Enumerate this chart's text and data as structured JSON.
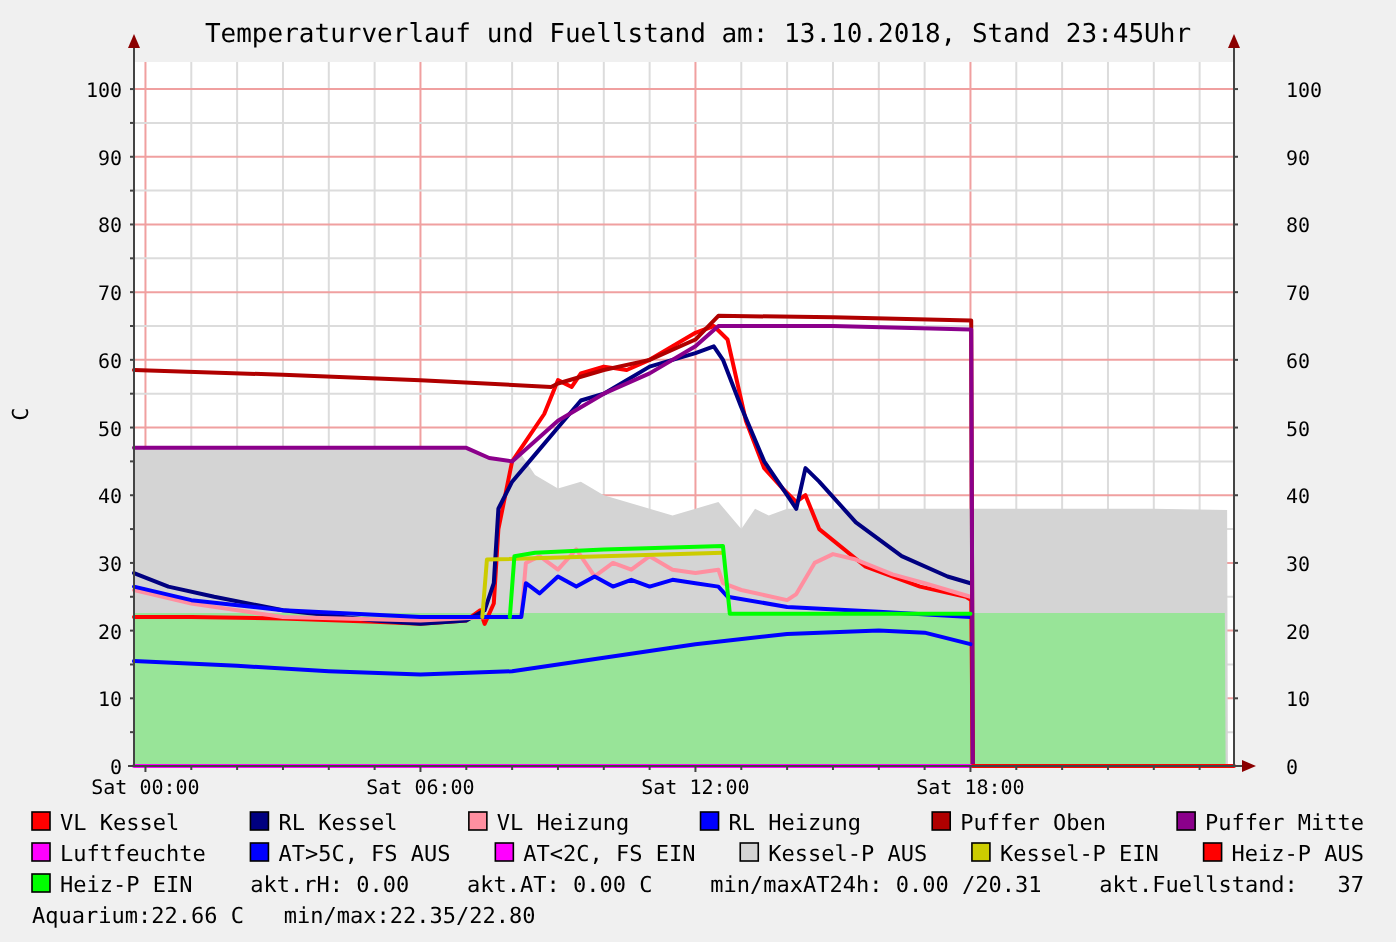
{
  "chart_data": {
    "type": "line",
    "title": "Temperaturverlauf und Fuellstand am: 13.10.2018, Stand 23:45Uhr",
    "ylabel": "C",
    "xlim": [
      "2018-10-12T23:45",
      "2018-10-13T23:45"
    ],
    "xticks": [
      {
        "value": "2018-10-13T00:00",
        "label": "Sat 00:00"
      },
      {
        "value": "2018-10-13T01:00",
        "label": null
      },
      {
        "value": "2018-10-13T02:00",
        "label": null
      },
      {
        "value": "2018-10-13T03:00",
        "label": null
      },
      {
        "value": "2018-10-13T04:00",
        "label": null
      },
      {
        "value": "2018-10-13T05:00",
        "label": null
      },
      {
        "value": "2018-10-13T06:00",
        "label": "Sat 06:00"
      },
      {
        "value": "2018-10-13T07:00",
        "label": null
      },
      {
        "value": "2018-10-13T08:00",
        "label": null
      },
      {
        "value": "2018-10-13T09:00",
        "label": null
      },
      {
        "value": "2018-10-13T10:00",
        "label": null
      },
      {
        "value": "2018-10-13T11:00",
        "label": null
      },
      {
        "value": "2018-10-13T12:00",
        "label": "Sat 12:00"
      },
      {
        "value": "2018-10-13T13:00",
        "label": null
      },
      {
        "value": "2018-10-13T14:00",
        "label": null
      },
      {
        "value": "2018-10-13T15:00",
        "label": null
      },
      {
        "value": "2018-10-13T16:00",
        "label": null
      },
      {
        "value": "2018-10-13T17:00",
        "label": null
      },
      {
        "value": "2018-10-13T18:00",
        "label": "Sat 18:00"
      },
      {
        "value": "2018-10-13T19:00",
        "label": null
      },
      {
        "value": "2018-10-13T20:00",
        "label": null
      },
      {
        "value": "2018-10-13T21:00",
        "label": null
      },
      {
        "value": "2018-10-13T22:00",
        "label": null
      },
      {
        "value": "2018-10-13T23:00",
        "label": null
      }
    ],
    "ylim": [
      0,
      104
    ],
    "yticks": [
      0,
      {
        "value": 5,
        "label": null
      },
      10,
      {
        "value": 15,
        "label": null
      },
      20,
      {
        "value": 25,
        "label": null
      },
      30,
      {
        "value": 35,
        "label": null
      },
      40,
      {
        "value": 45,
        "label": null
      },
      50,
      {
        "value": 55,
        "label": null
      },
      60,
      {
        "value": 65,
        "label": null
      },
      70,
      {
        "value": 75,
        "label": null
      },
      80,
      {
        "value": 85,
        "label": null
      },
      90,
      {
        "value": 95,
        "label": null
      },
      100
    ],
    "y2lim": [
      0,
      104
    ],
    "y2ticks": [
      0,
      10,
      20,
      30,
      40,
      50,
      60,
      70,
      80,
      90,
      100
    ],
    "grid": true,
    "legend": "bottom",
    "series": [
      {
        "name": "VL Kessel",
        "color": "#ff0000",
        "x": [
          "2018-10-12T23:45",
          "2018-10-13T01:00",
          "2018-10-13T03:00",
          "2018-10-13T05:00",
          "2018-10-13T06:00",
          "2018-10-13T07:00",
          "2018-10-13T07:18",
          "2018-10-13T07:24",
          "2018-10-13T07:36",
          "2018-10-13T07:42",
          "2018-10-13T08:00",
          "2018-10-13T08:18",
          "2018-10-13T08:42",
          "2018-10-13T09:00",
          "2018-10-13T09:18",
          "2018-10-13T09:30",
          "2018-10-13T10:00",
          "2018-10-13T10:30",
          "2018-10-13T11:00",
          "2018-10-13T11:30",
          "2018-10-13T12:00",
          "2018-10-13T12:24",
          "2018-10-13T12:42",
          "2018-10-13T13:06",
          "2018-10-13T13:30",
          "2018-10-13T13:54",
          "2018-10-13T14:12",
          "2018-10-13T14:24",
          "2018-10-13T14:42",
          "2018-10-13T15:42",
          "2018-10-13T16:54",
          "2018-10-13T17:54",
          "2018-10-13T18:01",
          "2018-10-13T18:03"
        ],
        "values": [
          22,
          22,
          21.8,
          21.3,
          21,
          21.5,
          23,
          21,
          24,
          35,
          45,
          48,
          52,
          57,
          56,
          58,
          59,
          58.5,
          60,
          62,
          64,
          65,
          63,
          51,
          44,
          41,
          39,
          40,
          35,
          29.5,
          26.5,
          25,
          24.5,
          0
        ]
      },
      {
        "name": "RL Kessel",
        "color": "#000080",
        "x": [
          "2018-10-12T23:45",
          "2018-10-13T00:30",
          "2018-10-13T01:30",
          "2018-10-13T03:00",
          "2018-10-13T05:00",
          "2018-10-13T06:00",
          "2018-10-13T07:00",
          "2018-10-13T07:24",
          "2018-10-13T07:36",
          "2018-10-13T07:42",
          "2018-10-13T08:00",
          "2018-10-13T08:30",
          "2018-10-13T09:00",
          "2018-10-13T09:30",
          "2018-10-13T10:00",
          "2018-10-13T10:30",
          "2018-10-13T11:00",
          "2018-10-13T11:30",
          "2018-10-13T12:00",
          "2018-10-13T12:24",
          "2018-10-13T12:36",
          "2018-10-13T13:00",
          "2018-10-13T13:30",
          "2018-10-13T14:00",
          "2018-10-13T14:12",
          "2018-10-13T14:24",
          "2018-10-13T14:42",
          "2018-10-13T15:30",
          "2018-10-13T16:30",
          "2018-10-13T17:30",
          "2018-10-13T18:00"
        ],
        "values": [
          28.5,
          26.5,
          25,
          23,
          21.5,
          21,
          21.5,
          23,
          27,
          38,
          42,
          46,
          50,
          54,
          55,
          57,
          59,
          60,
          61,
          62,
          60,
          53,
          45,
          40,
          38,
          44,
          42,
          36,
          31,
          28,
          27
        ]
      },
      {
        "name": "VL Heizung",
        "color": "#ff8fa0",
        "x": [
          "2018-10-12T23:45",
          "2018-10-13T01:00",
          "2018-10-13T03:00",
          "2018-10-13T06:00",
          "2018-10-13T07:30",
          "2018-10-13T08:12",
          "2018-10-13T08:18",
          "2018-10-13T08:36",
          "2018-10-13T09:00",
          "2018-10-13T09:24",
          "2018-10-13T09:48",
          "2018-10-13T10:12",
          "2018-10-13T10:36",
          "2018-10-13T11:00",
          "2018-10-13T11:30",
          "2018-10-13T12:00",
          "2018-10-13T12:30",
          "2018-10-13T12:36",
          "2018-10-13T13:00",
          "2018-10-13T14:00",
          "2018-10-13T14:12",
          "2018-10-13T14:36",
          "2018-10-13T15:00",
          "2018-10-13T15:30",
          "2018-10-13T16:18",
          "2018-10-13T17:00",
          "2018-10-13T18:00"
        ],
        "values": [
          26,
          24,
          22,
          21.5,
          22,
          22,
          30,
          31,
          29,
          32,
          28,
          30,
          29,
          31,
          29,
          28.5,
          29,
          27,
          26,
          24.5,
          25.4,
          30,
          31.3,
          30.5,
          28.3,
          27,
          25
        ]
      },
      {
        "name": "RL Heizung",
        "color": "#0000ff",
        "x": [
          "2018-10-12T23:45",
          "2018-10-13T01:00",
          "2018-10-13T03:00",
          "2018-10-13T06:00",
          "2018-10-13T08:12",
          "2018-10-13T08:18",
          "2018-10-13T08:36",
          "2018-10-13T09:00",
          "2018-10-13T09:24",
          "2018-10-13T09:48",
          "2018-10-13T10:12",
          "2018-10-13T10:36",
          "2018-10-13T11:00",
          "2018-10-13T11:30",
          "2018-10-13T12:00",
          "2018-10-13T12:30",
          "2018-10-13T12:42",
          "2018-10-13T14:00",
          "2018-10-13T16:00",
          "2018-10-13T18:00"
        ],
        "values": [
          26.5,
          24.5,
          23,
          22,
          22,
          27,
          25.5,
          28,
          26.5,
          28,
          26.5,
          27.5,
          26.5,
          27.5,
          27,
          26.5,
          25,
          23.5,
          22.8,
          22
        ]
      },
      {
        "name": "Puffer Oben",
        "color": "#b00000",
        "x": [
          "2018-10-12T23:45",
          "2018-10-13T03:00",
          "2018-10-13T06:00",
          "2018-10-13T08:51",
          "2018-10-13T09:00",
          "2018-10-13T10:00",
          "2018-10-13T11:00",
          "2018-10-13T12:00",
          "2018-10-13T12:30",
          "2018-10-13T15:00",
          "2018-10-13T18:00",
          "2018-10-13T18:01",
          "2018-10-13T18:03"
        ],
        "values": [
          58.5,
          57.8,
          57,
          56,
          56.5,
          58.5,
          60,
          63,
          66.5,
          66.3,
          65.8,
          65.8,
          0
        ]
      },
      {
        "name": "Puffer Mitte",
        "color": "#8b008b",
        "x": [
          "2018-10-12T23:45",
          "2018-10-13T03:00",
          "2018-10-13T07:00",
          "2018-10-13T07:30",
          "2018-10-13T08:00",
          "2018-10-13T09:00",
          "2018-10-13T10:00",
          "2018-10-13T11:00",
          "2018-10-13T12:00",
          "2018-10-13T12:30",
          "2018-10-13T15:00",
          "2018-10-13T18:00",
          "2018-10-13T18:01",
          "2018-10-13T18:03"
        ],
        "values": [
          47,
          47,
          47,
          45.5,
          45,
          51,
          55,
          58,
          62,
          65,
          65,
          64.5,
          64.5,
          0
        ]
      },
      {
        "name": "Luftfeuchte",
        "color": "#ff00ff",
        "x": [
          "2018-10-12T23:45",
          "2018-10-13T18:03"
        ],
        "values": [
          0,
          0
        ]
      },
      {
        "name": "AT>5C, FS AUS",
        "color": "#0000ff",
        "x": [
          "2018-10-12T23:45",
          "2018-10-13T02:00",
          "2018-10-13T04:00",
          "2018-10-13T06:00",
          "2018-10-13T08:00",
          "2018-10-13T10:00",
          "2018-10-13T12:00",
          "2018-10-13T14:00",
          "2018-10-13T16:00",
          "2018-10-13T17:00",
          "2018-10-13T18:00"
        ],
        "values": [
          15.5,
          14.8,
          14,
          13.5,
          14,
          16,
          18,
          19.5,
          20,
          19.7,
          18
        ]
      },
      {
        "name": "AT<2C, FS EIN",
        "color": "#ff00ff"
      },
      {
        "name": "Kessel-P AUS",
        "color": "#d4d4d4",
        "type": "area",
        "x": [
          "2018-10-12T23:45",
          "2018-10-13T07:00",
          "2018-10-13T07:30",
          "2018-10-13T08:00",
          "2018-10-13T08:12",
          "2018-10-13T08:30",
          "2018-10-13T09:00",
          "2018-10-13T09:30",
          "2018-10-13T10:00",
          "2018-10-13T10:30",
          "2018-10-13T11:00",
          "2018-10-13T11:30",
          "2018-10-13T12:00",
          "2018-10-13T12:30",
          "2018-10-13T13:00",
          "2018-10-13T13:18",
          "2018-10-13T13:36",
          "2018-10-13T14:00",
          "2018-10-13T16:00",
          "2018-10-13T18:00",
          "2018-10-13T20:00",
          "2018-10-13T22:00",
          "2018-10-13T23:36",
          "2018-10-13T23:37"
        ],
        "values": [
          47,
          47,
          45.5,
          45,
          46,
          43,
          41,
          42,
          40,
          39,
          38,
          37,
          38,
          39,
          35,
          38,
          37,
          38,
          38,
          38,
          38,
          38,
          37.8,
          0
        ]
      },
      {
        "name": "Kessel-P EIN",
        "color": "#cccc00",
        "x": [
          "2018-10-13T07:21",
          "2018-10-13T07:27",
          "2018-10-13T12:36"
        ],
        "values": [
          22,
          30.5,
          31.5
        ]
      },
      {
        "name": "Heiz-P AUS",
        "color": "#ff0000",
        "x": [
          "2018-10-13T18:03",
          "2018-10-13T23:45"
        ],
        "values": [
          0,
          0
        ]
      },
      {
        "name": "Heiz-P EIN",
        "color": "#00ff00",
        "x": [
          "2018-10-13T07:57",
          "2018-10-13T08:03",
          "2018-10-13T08:30",
          "2018-10-13T10:00",
          "2018-10-13T12:36",
          "2018-10-13T12:45",
          "2018-10-13T18:00"
        ],
        "values": [
          22,
          31,
          31.5,
          32,
          32.5,
          22.5,
          22.5
        ]
      },
      {
        "color": "#98e498",
        "type": "area",
        "x": [
          "2018-10-12T23:45",
          "2018-10-13T23:33",
          "2018-10-13T23:34"
        ],
        "values": [
          22.6,
          22.6,
          0
        ]
      }
    ],
    "annotations": [
      "akt.rH: 0.00",
      "akt.AT: 0.00 C",
      "min/maxAT24h: 0.00 /20.31",
      "akt.Fuellstand:   37",
      "Aquarium:22.66 C",
      "min/max:22.35/22.80"
    ]
  }
}
